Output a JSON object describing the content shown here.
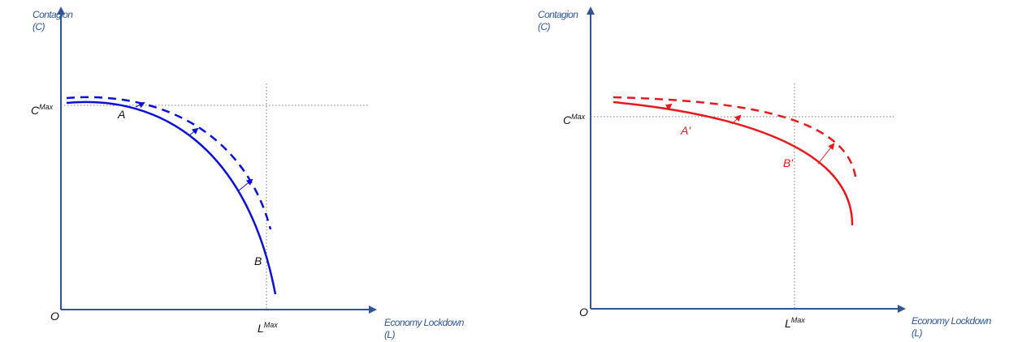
{
  "colors": {
    "axis": "#2f5597",
    "left_curve": "#0a10d8",
    "right_curve": "#e8191c",
    "guide": "#777777",
    "text": "#111111"
  },
  "left_panel": {
    "y_axis_title": "Contagion",
    "y_axis_symbol": "(C)",
    "x_axis_title": "Economy Lockdown",
    "x_axis_symbol": "(L)",
    "origin": "O",
    "c_max": {
      "base": "C",
      "sup": "Max"
    },
    "l_max": {
      "base": "L",
      "sup": "Max"
    },
    "point_a": "A",
    "point_b": "B"
  },
  "right_panel": {
    "y_axis_title": "Contagion",
    "y_axis_symbol": "(C)",
    "x_axis_title": "Economy Lockdown",
    "x_axis_symbol": "(L)",
    "origin": "O",
    "c_max": {
      "base": "C",
      "sup": "Max"
    },
    "l_max": {
      "base": "L",
      "sup": "Max"
    },
    "point_a": "A'",
    "point_b": "B'"
  }
}
